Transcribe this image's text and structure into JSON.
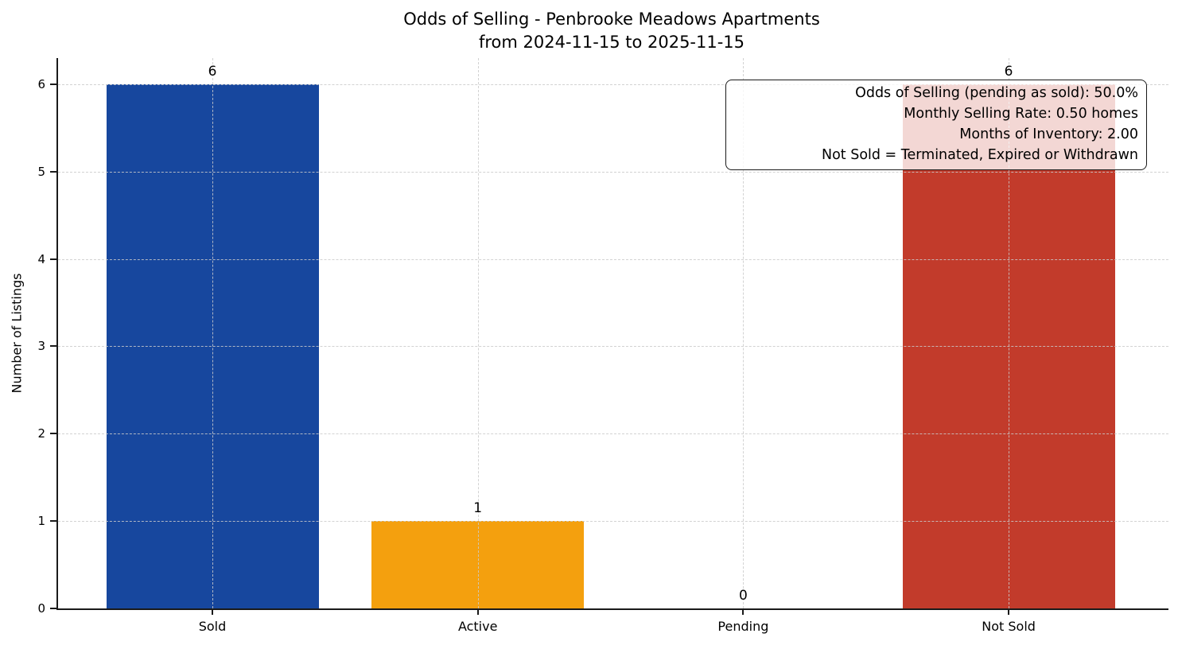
{
  "chart_data": {
    "type": "bar",
    "title": "Odds of Selling - Penbrooke Meadows Apartments\nfrom 2024-11-15 to 2025-11-15",
    "title_lines": [
      "Odds of Selling - Penbrooke Meadows Apartments",
      "from 2024-11-15 to 2025-11-15"
    ],
    "categories": [
      "Sold",
      "Active",
      "Pending",
      "Not Sold"
    ],
    "values": [
      6,
      1,
      0,
      6
    ],
    "colors": [
      "#17479e",
      "#f4a00e",
      null,
      "#c23b2b"
    ],
    "xlabel": "",
    "ylabel": "Number of Listings",
    "ylim": [
      0,
      6.3
    ],
    "yticks": [
      0,
      1,
      2,
      3,
      4,
      5,
      6
    ],
    "grid": true,
    "grid_style": "dashed",
    "value_labels_shown": true,
    "annotation_box": {
      "position": "top-right",
      "lines": [
        "Odds of Selling (pending as sold): 50.0%",
        "Monthly Selling Rate: 0.50 homes",
        "Months of Inventory: 2.00",
        "Not Sold = Terminated, Expired or Withdrawn"
      ]
    }
  }
}
